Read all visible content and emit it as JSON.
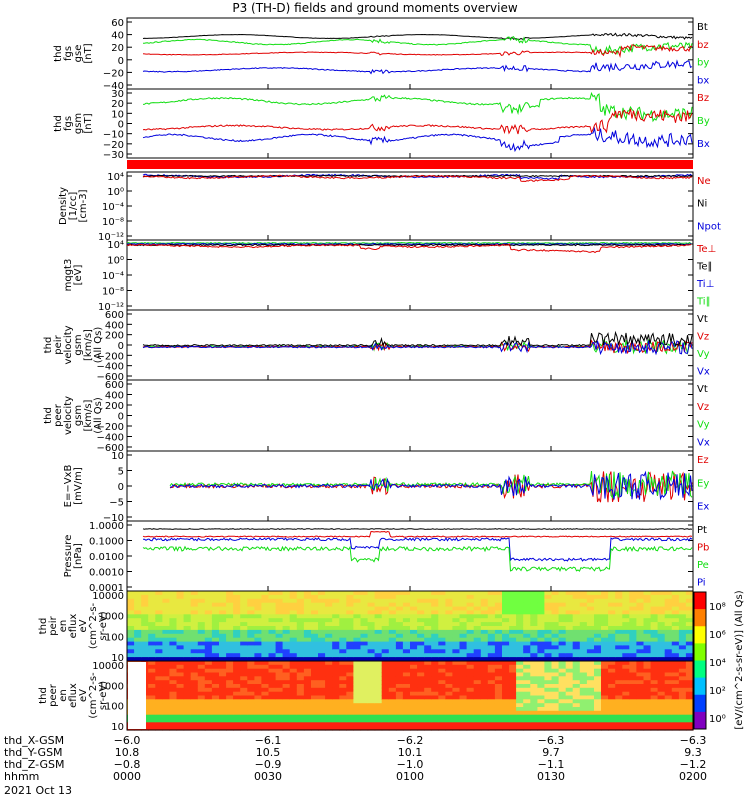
{
  "title": "P3 (TH-D) fields and ground moments overview",
  "colors": {
    "black": "#000000",
    "red": "#e00000",
    "green": "#11dd11",
    "blue": "#0000dd"
  },
  "panels": [
    {
      "id": "fgs-gse",
      "ylabel": [
        "thd",
        "fgs",
        "gse",
        "[nT]"
      ],
      "ticks": [
        "60",
        "40",
        "20",
        "0",
        "−20",
        "−40"
      ],
      "legend": [
        {
          "t": "Bt",
          "c": "black"
        },
        {
          "t": "bz",
          "c": "red"
        },
        {
          "t": "by",
          "c": "green"
        },
        {
          "t": "bx",
          "c": "blue"
        }
      ]
    },
    {
      "id": "fgs-gsm",
      "ylabel": [
        "thd",
        "fgs",
        "gsm",
        "[nT]"
      ],
      "ticks": [
        "30",
        "20",
        "10",
        "0",
        "−10",
        "−20",
        "−30"
      ],
      "legend": [
        {
          "t": "Bz",
          "c": "red"
        },
        {
          "t": "By",
          "c": "green"
        },
        {
          "t": "Bx",
          "c": "blue"
        }
      ]
    },
    {
      "id": "density",
      "ylabel": [
        "Density",
        "[1/cc]",
        "[cm-3]"
      ],
      "ticks": [
        "10⁴",
        "10⁰",
        "10⁻⁴",
        "10⁻⁸",
        "10⁻¹²"
      ],
      "legend": [
        {
          "t": "Ne",
          "c": "red"
        },
        {
          "t": "Ni",
          "c": "black"
        },
        {
          "t": "Npot",
          "c": "blue"
        }
      ]
    },
    {
      "id": "temp",
      "ylabel": [
        "mqgt3",
        "[eV]"
      ],
      "ticks": [
        "10⁴",
        "10⁰",
        "10⁻⁴",
        "10⁻⁸",
        "10⁻¹²"
      ],
      "legend": [
        {
          "t": "Te⊥",
          "c": "red"
        },
        {
          "t": "Te∥",
          "c": "black"
        },
        {
          "t": "Ti⊥",
          "c": "blue"
        },
        {
          "t": "Ti∥",
          "c": "green"
        }
      ]
    },
    {
      "id": "peir-vel",
      "ylabel": [
        "thd",
        "peir",
        "velocity",
        "gsm",
        "[km/s]",
        "(All Qs)"
      ],
      "ticks": [
        "600",
        "400",
        "200",
        "0",
        "−200",
        "−400",
        "−600"
      ],
      "legend": [
        {
          "t": "Vt",
          "c": "black"
        },
        {
          "t": "Vz",
          "c": "red"
        },
        {
          "t": "Vy",
          "c": "green"
        },
        {
          "t": "Vx",
          "c": "blue"
        }
      ]
    },
    {
      "id": "peer-vel",
      "ylabel": [
        "thd",
        "peer",
        "velocity",
        "gsm",
        "[km/s]",
        "(All Qs)"
      ],
      "ticks": [
        "600",
        "400",
        "200",
        "0",
        "−200",
        "−400",
        "−600"
      ],
      "legend": [
        {
          "t": "Vt",
          "c": "black"
        },
        {
          "t": "Vz",
          "c": "red"
        },
        {
          "t": "Vy",
          "c": "green"
        },
        {
          "t": "Vx",
          "c": "blue"
        }
      ]
    },
    {
      "id": "efield",
      "ylabel": [
        "E=−VxB",
        "[mV/m]"
      ],
      "ticks": [
        "10",
        "5",
        "0",
        "−5",
        "−10"
      ],
      "legend": [
        {
          "t": "Ez",
          "c": "red"
        },
        {
          "t": "Ey",
          "c": "green"
        },
        {
          "t": "Ex",
          "c": "blue"
        }
      ]
    },
    {
      "id": "pressure",
      "ylabel": [
        "Pressure",
        "[nPa]"
      ],
      "ticks": [
        "1.0000",
        "0.1000",
        "0.0100",
        "0.0010",
        "0.0001"
      ],
      "legend": [
        {
          "t": "Pt",
          "c": "black"
        },
        {
          "t": "Pb",
          "c": "red"
        },
        {
          "t": "Pe",
          "c": "green"
        },
        {
          "t": "Pi",
          "c": "blue"
        }
      ]
    },
    {
      "id": "peir-eflux",
      "ylabel": [
        "thd",
        "peir",
        "en",
        "eflux",
        "eV",
        "(cm^2-s-",
        "sr-eV)"
      ],
      "ticks": [
        "10000",
        "1000",
        "100",
        "10"
      ],
      "legend": []
    },
    {
      "id": "peer-eflux",
      "ylabel": [
        "thd",
        "peer",
        "en",
        "eflux",
        "eV",
        "(cm^2-s-",
        "sr-eV)"
      ],
      "ticks": [
        "10000",
        "1000",
        "100",
        "10"
      ],
      "legend": []
    }
  ],
  "colorbar": {
    "label": "[eV/(cm^2-s-sr-eV)] (All Qs)",
    "ticks_top": [
      "10⁶",
      "10⁴",
      "10²"
    ],
    "ticks_bottom": [
      "10⁸",
      "10⁶",
      "10⁴",
      "10²",
      "10⁰"
    ]
  },
  "footer": {
    "rows": [
      {
        "label": "thd_X-GSM",
        "values": [
          "−6.0",
          "−6.1",
          "−6.2",
          "−6.3",
          "−6.3"
        ]
      },
      {
        "label": "thd_Y-GSM",
        "values": [
          "10.8",
          "10.5",
          "10.1",
          "9.7",
          "9.3"
        ]
      },
      {
        "label": "thd_Z-GSM",
        "values": [
          "−0.8",
          "−0.9",
          "−1.0",
          "−1.1",
          "−1.2"
        ]
      },
      {
        "label": "hhmm",
        "values": [
          "0000",
          "0030",
          "0100",
          "0130",
          "0200"
        ]
      }
    ],
    "date": "2021 Oct 13"
  },
  "chart_data": {
    "type": "line",
    "title": "P3 (TH-D) fields and ground moments overview",
    "x": [
      "0000",
      "0030",
      "0100",
      "0130",
      "0200"
    ],
    "series": [
      {
        "name": "Bt",
        "panel": "fgs-gse",
        "values": [
          35,
          38,
          33,
          40,
          30
        ]
      },
      {
        "name": "bz",
        "panel": "fgs-gse",
        "values": [
          10,
          8,
          9,
          8,
          22
        ]
      },
      {
        "name": "by",
        "panel": "fgs-gse",
        "values": [
          28,
          30,
          25,
          30,
          12
        ]
      },
      {
        "name": "bx",
        "panel": "fgs-gse",
        "values": [
          -18,
          -16,
          -15,
          -12,
          -5
        ]
      },
      {
        "name": "Bz",
        "panel": "fgs-gsm",
        "values": [
          -5,
          -3,
          -2,
          -3,
          10
        ]
      },
      {
        "name": "By",
        "panel": "fgs-gsm",
        "values": [
          22,
          25,
          20,
          24,
          8
        ]
      },
      {
        "name": "Bx",
        "panel": "fgs-gsm",
        "values": [
          -15,
          -13,
          -12,
          -18,
          -10
        ]
      },
      {
        "name": "Vt",
        "panel": "peir-vel",
        "values": [
          -40,
          -30,
          -20,
          100,
          300
        ]
      },
      {
        "name": "Ez",
        "panel": "efield",
        "values": [
          0,
          -1,
          0,
          -2,
          2
        ]
      },
      {
        "name": "Pt",
        "panel": "pressure",
        "values": [
          0.5,
          0.6,
          0.5,
          0.6,
          0.6
        ]
      }
    ],
    "ylim_fgs_gse": [
      -40,
      60
    ],
    "ylim_fgs_gsm": [
      -30,
      30
    ],
    "ylim_velocity": [
      -600,
      600
    ],
    "ylim_efield": [
      -10,
      10
    ],
    "ylim_pressure": [
      0.0001,
      1.0
    ],
    "ylim_eflux": [
      10,
      10000
    ],
    "grid": false
  }
}
